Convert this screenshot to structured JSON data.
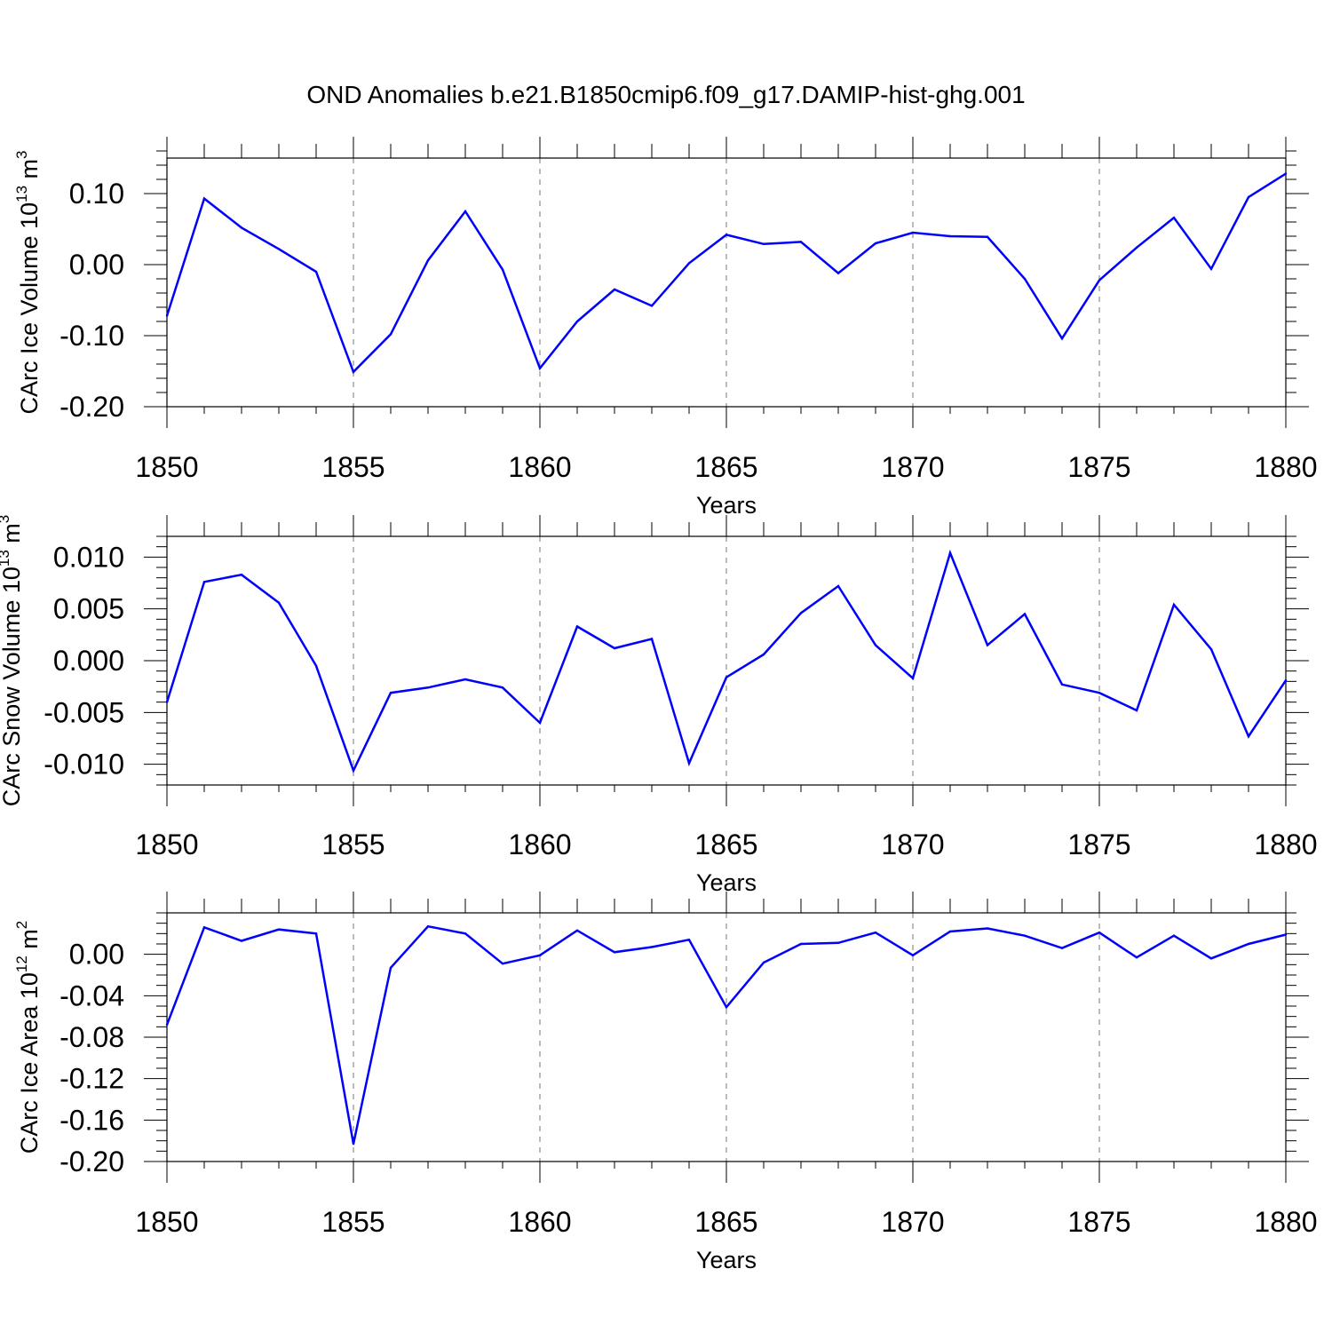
{
  "title": "OND Anomalies b.e21.B1850cmip6.f09_g17.DAMIP-hist-ghg.001",
  "colors": {
    "line": "#0000ff",
    "frame": "#000000",
    "grid": "#777777"
  },
  "chart_data": [
    {
      "type": "line",
      "ylabel": {
        "base": "CArc Ice Volume 10",
        "exp": "13",
        "unit": " m",
        "unit_exp": "3"
      },
      "xlabel": "Years",
      "xlim": [
        1850,
        1880
      ],
      "ylim": [
        -0.2,
        0.15
      ],
      "yticks": [
        -0.2,
        -0.1,
        0.0,
        0.1
      ],
      "yticklabels": [
        "-0.20",
        "-0.10",
        "0.00",
        "0.10"
      ],
      "yminor": 0.02,
      "xticks": [
        1850,
        1855,
        1860,
        1865,
        1870,
        1875,
        1880
      ],
      "xticklabels": [
        "1850",
        "1855",
        "1860",
        "1865",
        "1870",
        "1875",
        "1880"
      ],
      "x": [
        1850,
        1851,
        1852,
        1853,
        1854,
        1855,
        1856,
        1857,
        1858,
        1859,
        1860,
        1861,
        1862,
        1863,
        1864,
        1865,
        1866,
        1867,
        1868,
        1869,
        1870,
        1871,
        1872,
        1873,
        1874,
        1875,
        1876,
        1877,
        1878,
        1879,
        1880
      ],
      "values": [
        -0.072,
        0.093,
        0.052,
        0.022,
        -0.01,
        -0.151,
        -0.098,
        0.006,
        0.075,
        -0.007,
        -0.146,
        -0.08,
        -0.035,
        -0.058,
        0.002,
        0.042,
        0.029,
        0.032,
        -0.012,
        0.03,
        0.045,
        0.04,
        0.039,
        -0.02,
        -0.104,
        -0.022,
        0.024,
        0.066,
        -0.006,
        0.095,
        0.128
      ]
    },
    {
      "type": "line",
      "ylabel": {
        "base": "CArc Snow Volume 10",
        "exp": "13",
        "unit": " m",
        "unit_exp": "3"
      },
      "xlabel": "Years",
      "xlim": [
        1850,
        1880
      ],
      "ylim": [
        -0.012,
        0.012
      ],
      "yticks": [
        -0.01,
        -0.005,
        0.0,
        0.005,
        0.01
      ],
      "yticklabels": [
        "-0.010",
        "-0.005",
        "0.000",
        "0.005",
        "0.010"
      ],
      "yminor": 0.001,
      "xticks": [
        1850,
        1855,
        1860,
        1865,
        1870,
        1875,
        1880
      ],
      "xticklabels": [
        "1850",
        "1855",
        "1860",
        "1865",
        "1870",
        "1875",
        "1880"
      ],
      "x": [
        1850,
        1851,
        1852,
        1853,
        1854,
        1855,
        1856,
        1857,
        1858,
        1859,
        1860,
        1861,
        1862,
        1863,
        1864,
        1865,
        1866,
        1867,
        1868,
        1869,
        1870,
        1871,
        1872,
        1873,
        1874,
        1875,
        1876,
        1877,
        1878,
        1879,
        1880
      ],
      "values": [
        -0.004,
        0.0076,
        0.0083,
        0.0056,
        -0.0005,
        -0.0106,
        -0.0031,
        -0.0026,
        -0.0018,
        -0.0026,
        -0.006,
        0.0033,
        0.0012,
        0.0021,
        -0.0099,
        -0.0016,
        0.0006,
        0.0046,
        0.0072,
        0.0015,
        -0.0017,
        0.0104,
        0.0015,
        0.0045,
        -0.0023,
        -0.0031,
        -0.0048,
        0.0054,
        0.0011,
        -0.0073,
        -0.0019
      ]
    },
    {
      "type": "line",
      "ylabel": {
        "base": "CArc Ice Area 10",
        "exp": "12",
        "unit": " m",
        "unit_exp": "2"
      },
      "xlabel": "Years",
      "xlim": [
        1850,
        1880
      ],
      "ylim": [
        -0.2,
        0.04
      ],
      "yticks": [
        -0.2,
        -0.16,
        -0.12,
        -0.08,
        -0.04,
        0.0
      ],
      "yticklabels": [
        "-0.20",
        "-0.16",
        "-0.12",
        "-0.08",
        "-0.04",
        "0.00"
      ],
      "yminor": 0.01,
      "xticks": [
        1850,
        1855,
        1860,
        1865,
        1870,
        1875,
        1880
      ],
      "xticklabels": [
        "1850",
        "1855",
        "1860",
        "1865",
        "1870",
        "1875",
        "1880"
      ],
      "x": [
        1850,
        1851,
        1852,
        1853,
        1854,
        1855,
        1856,
        1857,
        1858,
        1859,
        1860,
        1861,
        1862,
        1863,
        1864,
        1865,
        1866,
        1867,
        1868,
        1869,
        1870,
        1871,
        1872,
        1873,
        1874,
        1875,
        1876,
        1877,
        1878,
        1879,
        1880
      ],
      "values": [
        -0.068,
        0.026,
        0.013,
        0.024,
        0.02,
        -0.183,
        -0.013,
        0.027,
        0.02,
        -0.009,
        -0.001,
        0.023,
        0.002,
        0.007,
        0.014,
        -0.051,
        -0.008,
        0.01,
        0.011,
        0.021,
        -0.001,
        0.022,
        0.025,
        0.018,
        0.006,
        0.021,
        -0.003,
        0.018,
        -0.004,
        0.01,
        0.019
      ]
    }
  ]
}
